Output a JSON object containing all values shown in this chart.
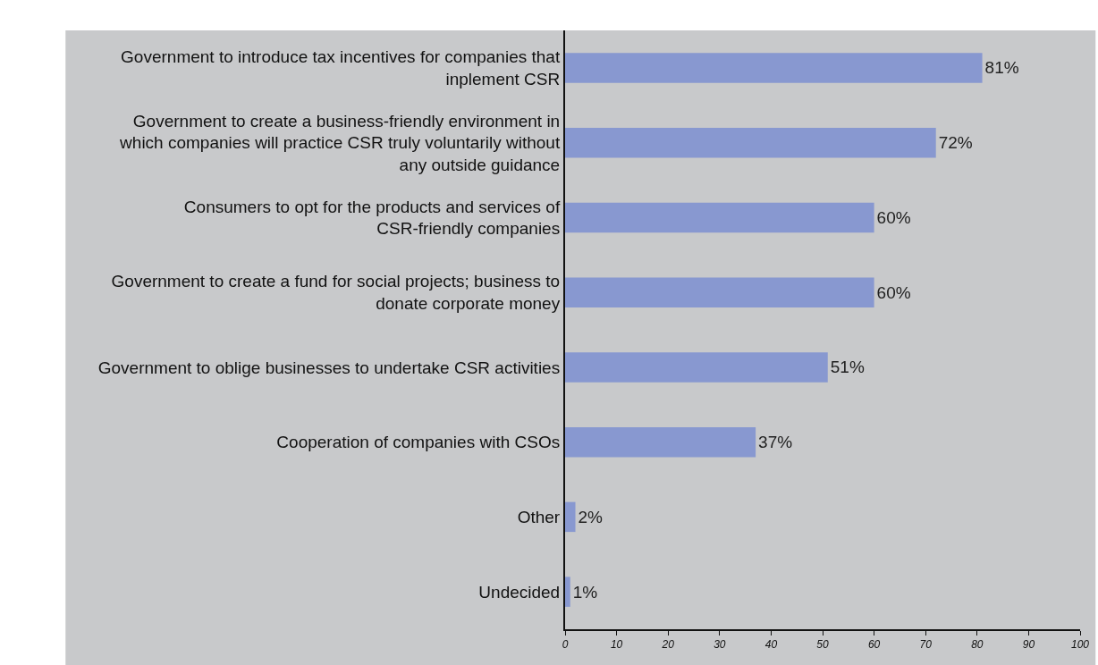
{
  "chart_data": {
    "type": "bar",
    "orientation": "horizontal",
    "categories": [
      "Government to introduce tax incentives for companies that inplement CSR",
      "Government to create a business-friendly environment in which companies will practice CSR truly voluntarily without any outside guidance",
      "Consumers to opt for the products and services of CSR-friendly companies",
      "Government to create a fund for social projects; business to donate corporate money",
      "Government to oblige businesses to undertake CSR activities",
      "Cooperation of companies with CSOs",
      "Other",
      "Undecided"
    ],
    "values": [
      81,
      72,
      60,
      60,
      51,
      37,
      2,
      1
    ],
    "value_labels": [
      "81%",
      "72%",
      "60%",
      "60%",
      "51%",
      "37%",
      "2%",
      "1%"
    ],
    "color": "#8898d0",
    "xlim": [
      0,
      100
    ],
    "xticks": [
      0,
      10,
      20,
      30,
      40,
      50,
      60,
      70,
      80,
      90,
      100
    ],
    "grid": false,
    "legend": false
  }
}
